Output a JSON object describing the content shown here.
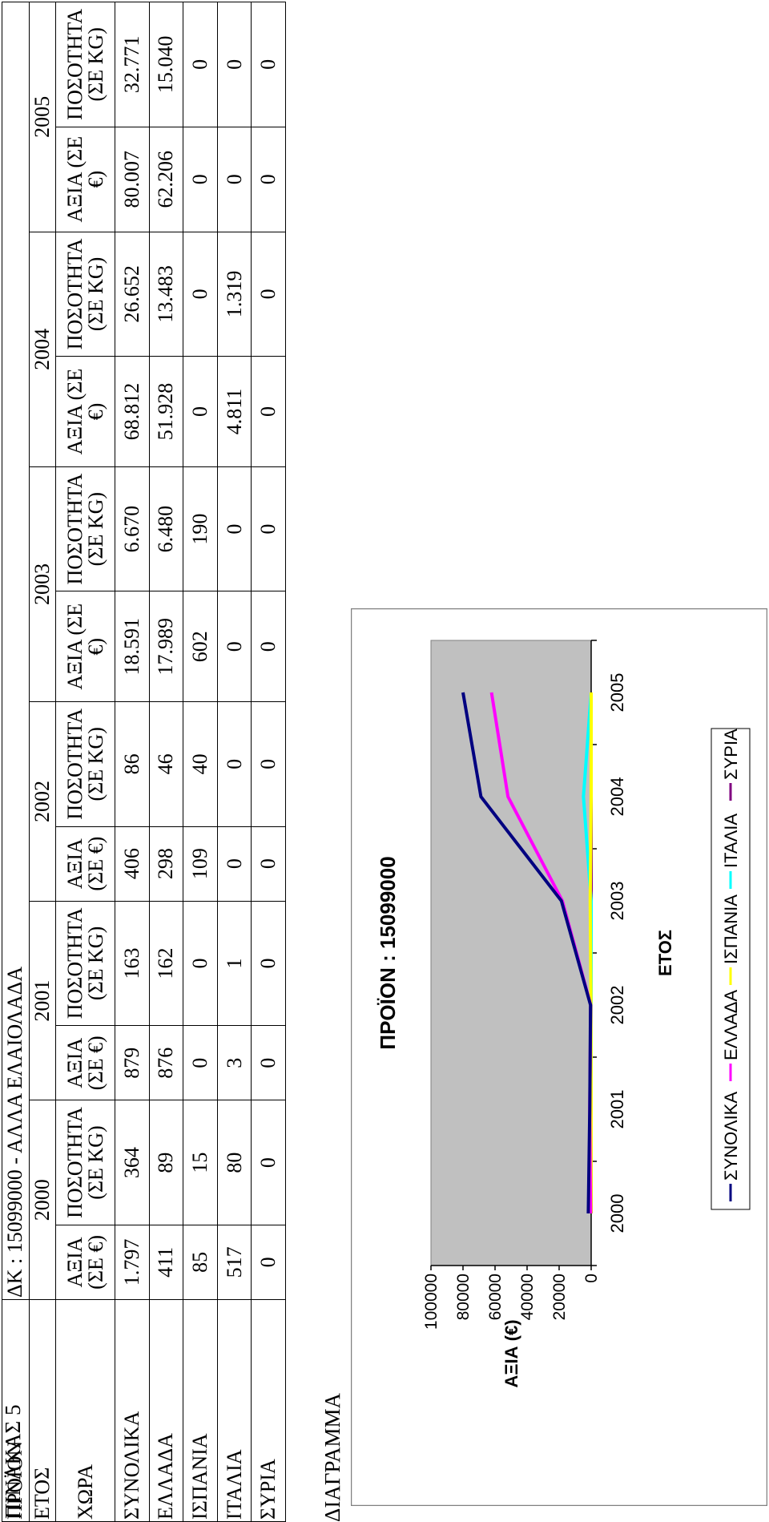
{
  "document": {
    "table_caption": "ΠΙΝΑΚΑΣ 5",
    "product_label": "ΠΡΟΪΟΝ",
    "product_value": "ΔΚ : 15099000 - ΑΛΛΑ ΕΛΑΙΟΛΑΔΑ",
    "year_label": "ΕΤΟΣ",
    "country_label": "ΧΩΡΑ",
    "years": [
      "2000",
      "2001",
      "2002",
      "2003",
      "2004",
      "2005"
    ],
    "value_header": "ΑΞΙΑ (ΣΕ €)",
    "quantity_header": "ΠΟΣΟΤΗΤΑ (ΣΕ KG)",
    "rows": [
      {
        "country": "ΣΥΝΟΛΙΚΑ",
        "cells": [
          "1.797",
          "364",
          "879",
          "163",
          "406",
          "86",
          "18.591",
          "6.670",
          "68.812",
          "26.652",
          "80.007",
          "32.771"
        ]
      },
      {
        "country": "ΕΛΛΑΔΑ",
        "cells": [
          "411",
          "89",
          "876",
          "162",
          "298",
          "46",
          "17.989",
          "6.480",
          "51.928",
          "13.483",
          "62.206",
          "15.040"
        ]
      },
      {
        "country": "ΙΣΠΑΝΙΑ",
        "cells": [
          "85",
          "15",
          "0",
          "0",
          "109",
          "40",
          "602",
          "190",
          "0",
          "0",
          "0",
          "0"
        ]
      },
      {
        "country": "ΙΤΑΛΙΑ",
        "cells": [
          "517",
          "80",
          "3",
          "1",
          "0",
          "0",
          "0",
          "0",
          "4.811",
          "1.319",
          "0",
          "0"
        ]
      },
      {
        "country": "ΣΥΡΙΑ",
        "cells": [
          "0",
          "0",
          "0",
          "0",
          "0",
          "0",
          "0",
          "0",
          "0",
          "0",
          "0",
          "0"
        ]
      }
    ],
    "diagram_label": "ΔΙΑΓΡΑΜΜΑ"
  },
  "chart_data": {
    "type": "line",
    "title": "ΠΡΟΪΟΝ : 15099000",
    "xlabel": "ΕΤΟΣ",
    "ylabel": "ΑΞΙΑ (€)",
    "categories": [
      "2000",
      "2001",
      "2002",
      "2003",
      "2004",
      "2005"
    ],
    "ylim": [
      0,
      100000
    ],
    "yticks": [
      0,
      20000,
      40000,
      60000,
      80000,
      100000
    ],
    "grid": false,
    "plot_background": "#c0c0c0",
    "legend_position": "bottom",
    "series": [
      {
        "name": "ΣΥΝΟΛΙΚΑ",
        "color": "#000080",
        "values": [
          1797,
          879,
          406,
          18591,
          68812,
          80007
        ]
      },
      {
        "name": "ΕΛΛΑΔΑ",
        "color": "#ff00ff",
        "values": [
          411,
          876,
          298,
          17989,
          51928,
          62206
        ]
      },
      {
        "name": "ΙΣΠΑΝΙΑ",
        "color": "#ffff00",
        "values": [
          85,
          0,
          109,
          602,
          0,
          0
        ]
      },
      {
        "name": "ΙΤΑΛΙΑ",
        "color": "#00ffff",
        "values": [
          517,
          3,
          0,
          0,
          4811,
          0
        ]
      },
      {
        "name": "ΣΥΡΙΑ",
        "color": "#800080",
        "values": [
          0,
          0,
          0,
          0,
          0,
          0
        ]
      }
    ]
  }
}
